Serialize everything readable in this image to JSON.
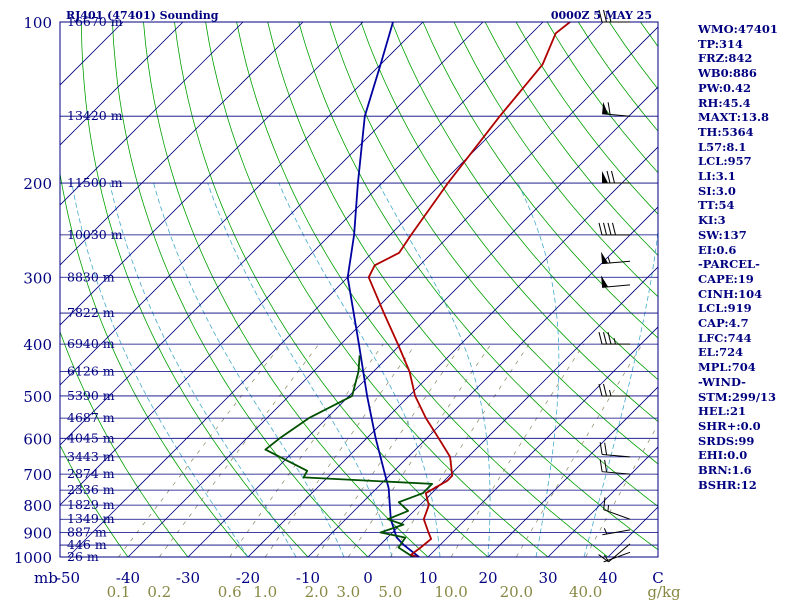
{
  "header": {
    "station": "RJ401 (47401) Sounding",
    "time": "0000Z  5 MAY 25"
  },
  "colors": {
    "frame": "#000080",
    "isobar": "#000080",
    "isotherm": "#000080",
    "dry_adiabat": "#00a000",
    "moist_adiabat": "#44aacc",
    "mixing_ratio": "#888866",
    "temperature": "#b00000",
    "dewpoint": "#005000",
    "parcel": "#0000a0",
    "axis_label": "#000080",
    "mixing_label": "#888844",
    "barb": "#000000"
  },
  "chart_data": {
    "type": "skew-t",
    "pressure_range_mb": [
      1000,
      100
    ],
    "temperature_range_C": [
      -50,
      50
    ],
    "pressure_ticks": [
      "100",
      "200",
      "300",
      "400",
      "500",
      "600",
      "700",
      "800",
      "900",
      "1000"
    ],
    "pressure_unit": "mb",
    "temperature_ticks": [
      "-50",
      "-40",
      "-30",
      "-20",
      "-10",
      "0",
      "10",
      "20",
      "30",
      "40",
      "C"
    ],
    "mixing_ratio_ticks": [
      "0.1",
      "0.2",
      "0.6",
      "1.0",
      "2.0",
      "3.0",
      "5.0",
      "10.0",
      "20.0",
      "40.0",
      "g/kg"
    ],
    "height_levels": [
      {
        "p": 100,
        "label": "16670 m"
      },
      {
        "p": 150,
        "label": "13420 m"
      },
      {
        "p": 200,
        "label": "11500 m"
      },
      {
        "p": 250,
        "label": "10030 m"
      },
      {
        "p": 300,
        "label": "8830 m"
      },
      {
        "p": 350,
        "label": "7822 m"
      },
      {
        "p": 400,
        "label": "6940 m"
      },
      {
        "p": 450,
        "label": "6126 m"
      },
      {
        "p": 500,
        "label": "5390 m"
      },
      {
        "p": 550,
        "label": "4687 m"
      },
      {
        "p": 600,
        "label": "4045 m"
      },
      {
        "p": 650,
        "label": "3443 m"
      },
      {
        "p": 700,
        "label": "2874 m"
      },
      {
        "p": 750,
        "label": "2336 m"
      },
      {
        "p": 800,
        "label": "1829 m"
      },
      {
        "p": 850,
        "label": "1349 m"
      },
      {
        "p": 900,
        "label": "887 m"
      },
      {
        "p": 950,
        "label": "446 m"
      },
      {
        "p": 1000,
        "label": "26 m"
      }
    ],
    "temperature_profile": [
      {
        "p": 1000,
        "t": 8.2
      },
      {
        "p": 990,
        "t": 6.8
      },
      {
        "p": 960,
        "t": 7.2
      },
      {
        "p": 925,
        "t": 7.5
      },
      {
        "p": 900,
        "t": 6.0
      },
      {
        "p": 850,
        "t": 3.0
      },
      {
        "p": 800,
        "t": 1.5
      },
      {
        "p": 760,
        "t": -1.0
      },
      {
        "p": 720,
        "t": 0.5
      },
      {
        "p": 705,
        "t": 0.5
      },
      {
        "p": 650,
        "t": -3.0
      },
      {
        "p": 600,
        "t": -8.0
      },
      {
        "p": 550,
        "t": -13.5
      },
      {
        "p": 500,
        "t": -19.0
      },
      {
        "p": 450,
        "t": -24.0
      },
      {
        "p": 400,
        "t": -30.5
      },
      {
        "p": 350,
        "t": -38.0
      },
      {
        "p": 300,
        "t": -46.5
      },
      {
        "p": 285,
        "t": -47.5
      },
      {
        "p": 270,
        "t": -45.5
      },
      {
        "p": 250,
        "t": -46.5
      },
      {
        "p": 200,
        "t": -49.0
      },
      {
        "p": 150,
        "t": -51.5
      },
      {
        "p": 120,
        "t": -53.0
      },
      {
        "p": 105,
        "t": -56.0
      },
      {
        "p": 100,
        "t": -55.5
      }
    ],
    "dewpoint_profile": [
      {
        "p": 1000,
        "t": 7.5
      },
      {
        "p": 960,
        "t": 3.5
      },
      {
        "p": 920,
        "t": 3.0
      },
      {
        "p": 900,
        "t": -2.0
      },
      {
        "p": 870,
        "t": 0.5
      },
      {
        "p": 850,
        "t": -3.0
      },
      {
        "p": 820,
        "t": -1.0
      },
      {
        "p": 790,
        "t": -4.0
      },
      {
        "p": 760,
        "t": -1.5
      },
      {
        "p": 730,
        "t": -1.5
      },
      {
        "p": 710,
        "t": -24.0
      },
      {
        "p": 690,
        "t": -24.5
      },
      {
        "p": 630,
        "t": -35.0
      },
      {
        "p": 600,
        "t": -34.5
      },
      {
        "p": 550,
        "t": -33.0
      },
      {
        "p": 500,
        "t": -29.5
      },
      {
        "p": 450,
        "t": -32.5
      },
      {
        "p": 420,
        "t": -35.0
      }
    ],
    "parcel_profile": [
      {
        "p": 1000,
        "t": 8.5
      },
      {
        "p": 950,
        "t": 4.0
      },
      {
        "p": 919,
        "t": 1.5
      },
      {
        "p": 850,
        "t": -2.5
      },
      {
        "p": 800,
        "t": -5.0
      },
      {
        "p": 744,
        "t": -8.0
      },
      {
        "p": 700,
        "t": -11.0
      },
      {
        "p": 600,
        "t": -18.5
      },
      {
        "p": 500,
        "t": -27.0
      },
      {
        "p": 400,
        "t": -37.0
      },
      {
        "p": 300,
        "t": -50.0
      },
      {
        "p": 250,
        "t": -56.0
      },
      {
        "p": 200,
        "t": -64.0
      },
      {
        "p": 150,
        "t": -74.0
      },
      {
        "p": 120,
        "t": -80.0
      },
      {
        "p": 100,
        "t": -85.0
      }
    ],
    "wind_profile_kt": [
      {
        "p": 980,
        "dir": 250,
        "spd": 5
      },
      {
        "p": 945,
        "dir": 230,
        "spd": 10
      },
      {
        "p": 890,
        "dir": 260,
        "spd": 5
      },
      {
        "p": 850,
        "dir": 290,
        "spd": 15
      },
      {
        "p": 700,
        "dir": 275,
        "spd": 20
      },
      {
        "p": 650,
        "dir": 275,
        "spd": 20
      },
      {
        "p": 500,
        "dir": 270,
        "spd": 25
      },
      {
        "p": 400,
        "dir": 270,
        "spd": 35
      },
      {
        "p": 310,
        "dir": 265,
        "spd": 50
      },
      {
        "p": 280,
        "dir": 265,
        "spd": 55
      },
      {
        "p": 250,
        "dir": 270,
        "spd": 40
      },
      {
        "p": 200,
        "dir": 270,
        "spd": 70
      },
      {
        "p": 150,
        "dir": 275,
        "spd": 60
      },
      {
        "p": 100,
        "dir": 270,
        "spd": 30
      }
    ]
  },
  "indices": [
    "WMO:47401",
    "TP:314",
    "FRZ:842",
    "WB0:886",
    "PW:0.42",
    "RH:45.4",
    "MAXT:13.8",
    "TH:5364",
    "L57:8.1",
    "LCL:957",
    "LI:3.1",
    "SI:3.0",
    "TT:54",
    "KI:3",
    "SW:137",
    "EI:0.6",
    "-PARCEL-",
    "CAPE:19",
    "CINH:104",
    "LCL:919",
    "CAP:4.7",
    "LFC:744",
    "EL:724",
    "MPL:704",
    "-WIND-",
    "STM:299/13",
    "HEL:21",
    "SHR+:0.0",
    "SRDS:99",
    "EHI:0.0",
    "BRN:1.6",
    "BSHR:12"
  ]
}
